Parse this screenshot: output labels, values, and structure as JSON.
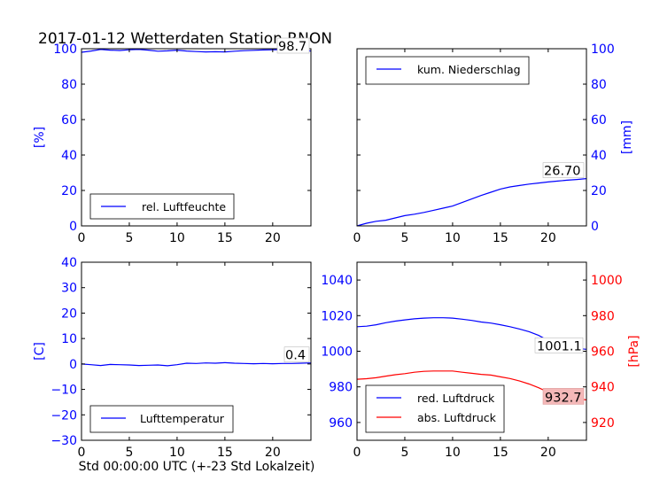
{
  "figure_title": "2017-01-12 Wetterdaten Station RNON",
  "xlabel": "Std 00:00:00 UTC (+-23 Std Lokalzeit)",
  "colors": {
    "blue": "#0000ff",
    "red": "#ff0000",
    "black": "#000000",
    "red_box": "#f4b8b8"
  },
  "chart_data": [
    {
      "id": "humidity",
      "type": "line",
      "xlim": [
        0,
        24
      ],
      "x_ticks": [
        0,
        5,
        10,
        15,
        20
      ],
      "ylim": [
        0,
        100
      ],
      "y_ticks": [
        0,
        20,
        40,
        60,
        80,
        100
      ],
      "ylabel": "[%]",
      "legend": "lower-left",
      "annotation": "98.7",
      "series": [
        {
          "name": "rel. Luftfeuchte",
          "color": "#0000ff",
          "x": [
            0,
            1,
            2,
            3,
            4,
            5,
            6,
            7,
            8,
            9,
            10,
            11,
            12,
            13,
            14,
            15,
            16,
            17,
            18,
            19,
            20,
            21,
            22,
            23,
            24
          ],
          "y": [
            98.0,
            98.7,
            99.6,
            99.2,
            99.0,
            99.4,
            99.6,
            99.2,
            98.6,
            98.8,
            99.2,
            98.7,
            98.4,
            98.2,
            98.3,
            98.2,
            98.6,
            98.9,
            99.1,
            99.3,
            99.4,
            99.5,
            99.6,
            99.5,
            98.7
          ]
        }
      ]
    },
    {
      "id": "precipitation",
      "type": "line",
      "xlim": [
        0,
        24
      ],
      "x_ticks": [
        0,
        5,
        10,
        15,
        20
      ],
      "ylim": [
        0,
        100
      ],
      "y_ticks": [
        0,
        20,
        40,
        60,
        80,
        100
      ],
      "ylabel": "[mm]",
      "legend": "upper-left",
      "annotation": "26.70",
      "series": [
        {
          "name": "kum. Niederschlag",
          "color": "#0000ff",
          "x": [
            0,
            1,
            2,
            3,
            4,
            5,
            6,
            7,
            8,
            9,
            10,
            11,
            12,
            13,
            14,
            15,
            16,
            17,
            18,
            19,
            20,
            21,
            22,
            23,
            24
          ],
          "y": [
            0.0,
            1.5,
            2.6,
            3.2,
            4.5,
            5.8,
            6.6,
            7.6,
            8.8,
            10.0,
            11.2,
            13.2,
            15.2,
            17.2,
            19.0,
            20.8,
            22.0,
            22.8,
            23.6,
            24.2,
            24.8,
            25.3,
            25.8,
            26.2,
            26.7
          ]
        }
      ]
    },
    {
      "id": "temperature",
      "type": "line",
      "xlim": [
        0,
        24
      ],
      "x_ticks": [
        0,
        5,
        10,
        15,
        20
      ],
      "ylim": [
        -30,
        40
      ],
      "y_ticks": [
        -30,
        -20,
        -10,
        0,
        10,
        20,
        30,
        40
      ],
      "y_tick_labels": [
        "−30",
        "−20",
        "−10",
        "0",
        "10",
        "20",
        "30",
        "40"
      ],
      "ylabel": "[C]",
      "legend": "lower-left",
      "annotation": "0.4",
      "series": [
        {
          "name": "Lufttemperatur",
          "color": "#0000ff",
          "x": [
            0,
            1,
            2,
            3,
            4,
            5,
            6,
            7,
            8,
            9,
            10,
            11,
            12,
            13,
            14,
            15,
            16,
            17,
            18,
            19,
            20,
            21,
            22,
            23,
            24
          ],
          "y": [
            0.0,
            -0.3,
            -0.6,
            -0.2,
            -0.3,
            -0.4,
            -0.6,
            -0.5,
            -0.4,
            -0.7,
            -0.3,
            0.3,
            0.2,
            0.4,
            0.3,
            0.5,
            0.3,
            0.2,
            0.1,
            0.2,
            0.1,
            0.2,
            0.2,
            0.3,
            0.4
          ]
        }
      ]
    },
    {
      "id": "pressure",
      "type": "line",
      "xlim": [
        0,
        24
      ],
      "x_ticks": [
        0,
        5,
        10,
        15,
        20
      ],
      "ylim": [
        950,
        1050
      ],
      "y_ticks": [
        960,
        980,
        1000,
        1020,
        1040
      ],
      "ylim_right": [
        910,
        1010
      ],
      "y_ticks_right": [
        920,
        940,
        960,
        980,
        1000
      ],
      "ylabel_right": "[hPa]",
      "legend": "lower-left",
      "annotations": [
        "1001.1",
        "932.7"
      ],
      "series": [
        {
          "name": "red. Luftdruck",
          "color": "#0000ff",
          "axis": "left",
          "x": [
            0,
            1,
            2,
            3,
            4,
            5,
            6,
            7,
            8,
            9,
            10,
            11,
            12,
            13,
            14,
            15,
            16,
            17,
            18,
            19,
            20,
            21,
            22,
            23,
            24
          ],
          "y": [
            1013.8,
            1014.1,
            1014.9,
            1016.0,
            1016.9,
            1017.6,
            1018.2,
            1018.6,
            1018.8,
            1018.8,
            1018.6,
            1018.0,
            1017.3,
            1016.4,
            1015.8,
            1014.9,
            1013.8,
            1012.5,
            1011.0,
            1008.9,
            1006.0,
            1003.8,
            1002.2,
            1001.6,
            1001.1
          ]
        },
        {
          "name": "abs. Luftdruck",
          "color": "#ff0000",
          "axis": "right",
          "x": [
            0,
            1,
            2,
            3,
            4,
            5,
            6,
            7,
            8,
            9,
            10,
            11,
            12,
            13,
            14,
            15,
            16,
            17,
            18,
            19,
            20,
            21,
            22,
            23,
            24
          ],
          "y": [
            944.3,
            944.6,
            945.1,
            946.0,
            946.8,
            947.4,
            948.2,
            948.7,
            948.9,
            948.9,
            948.9,
            948.2,
            947.6,
            947.0,
            946.6,
            945.6,
            944.7,
            943.3,
            941.6,
            939.5,
            937.0,
            935.4,
            934.2,
            933.3,
            932.7
          ]
        }
      ]
    }
  ]
}
